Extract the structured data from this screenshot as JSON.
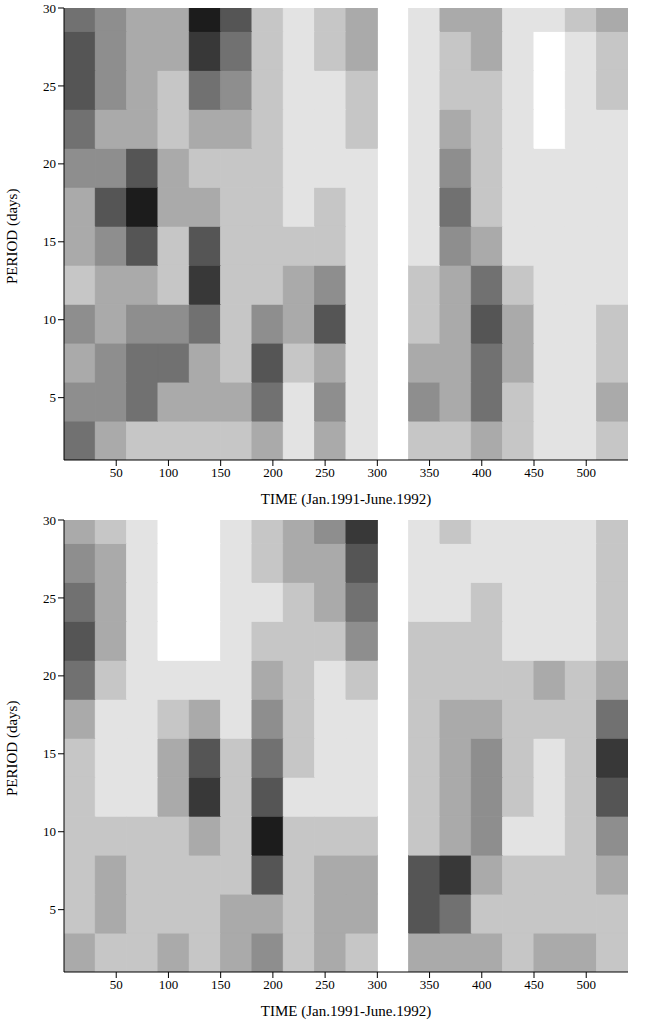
{
  "chart_data": [
    {
      "type": "heatmap",
      "x_label": "TIME (Jan.1991-June.1992)",
      "y_label": "PERIOD (days)",
      "xlim": [
        0,
        540
      ],
      "xticks": [
        50,
        100,
        150,
        200,
        250,
        300,
        350,
        400,
        450,
        500
      ],
      "ylim": [
        1,
        30
      ],
      "yticks": [
        5,
        10,
        15,
        20,
        25,
        30
      ],
      "x_edges": [
        0,
        30,
        60,
        90,
        120,
        150,
        180,
        210,
        240,
        270,
        300,
        330,
        360,
        390,
        420,
        450,
        480,
        510,
        540
      ],
      "y_edges": [
        1,
        3.5,
        6,
        8.5,
        11,
        13.5,
        16,
        18.5,
        21,
        23.5,
        26,
        28.5,
        30
      ],
      "zlim": [
        0,
        8
      ],
      "z": [
        [
          5,
          3,
          2,
          2,
          2,
          2,
          3,
          1,
          3,
          1,
          null,
          2,
          2,
          3,
          2,
          1,
          1,
          2
        ],
        [
          4,
          4,
          5,
          3,
          3,
          3,
          5,
          1,
          4,
          1,
          null,
          4,
          3,
          5,
          2,
          1,
          1,
          3
        ],
        [
          3,
          4,
          5,
          5,
          3,
          2,
          6,
          2,
          3,
          1,
          null,
          3,
          3,
          5,
          3,
          1,
          1,
          2
        ],
        [
          4,
          3,
          4,
          4,
          5,
          2,
          4,
          3,
          6,
          1,
          null,
          2,
          3,
          6,
          3,
          1,
          1,
          2
        ],
        [
          2,
          3,
          3,
          2,
          7,
          2,
          2,
          3,
          4,
          1,
          null,
          2,
          3,
          5,
          2,
          1,
          1,
          1
        ],
        [
          3,
          4,
          6,
          2,
          6,
          2,
          2,
          2,
          2,
          1,
          null,
          1,
          4,
          3,
          1,
          1,
          1,
          1
        ],
        [
          3,
          6,
          8,
          3,
          3,
          2,
          2,
          1,
          2,
          1,
          null,
          1,
          5,
          2,
          1,
          1,
          1,
          1
        ],
        [
          4,
          4,
          6,
          3,
          2,
          2,
          2,
          1,
          1,
          1,
          null,
          1,
          4,
          2,
          1,
          1,
          1,
          1
        ],
        [
          5,
          3,
          3,
          2,
          3,
          3,
          2,
          1,
          1,
          2,
          null,
          1,
          3,
          2,
          1,
          0,
          1,
          1
        ],
        [
          6,
          4,
          3,
          2,
          5,
          4,
          2,
          1,
          1,
          2,
          null,
          1,
          2,
          2,
          1,
          0,
          1,
          2
        ],
        [
          6,
          4,
          3,
          3,
          7,
          5,
          2,
          1,
          2,
          3,
          null,
          1,
          2,
          3,
          1,
          0,
          1,
          2
        ],
        [
          5,
          4,
          3,
          3,
          8,
          6,
          2,
          1,
          2,
          3,
          null,
          1,
          3,
          3,
          1,
          1,
          2,
          3
        ]
      ]
    },
    {
      "type": "heatmap",
      "x_label": "TIME (Jan.1991-June.1992)",
      "y_label": "PERIOD (days)",
      "xlim": [
        0,
        540
      ],
      "xticks": [
        50,
        100,
        150,
        200,
        250,
        300,
        350,
        400,
        450,
        500
      ],
      "ylim": [
        1,
        30
      ],
      "yticks": [
        5,
        10,
        15,
        20,
        25,
        30
      ],
      "x_edges": [
        0,
        30,
        60,
        90,
        120,
        150,
        180,
        210,
        240,
        270,
        300,
        330,
        360,
        390,
        420,
        450,
        480,
        510,
        540
      ],
      "y_edges": [
        1,
        3.5,
        6,
        8.5,
        11,
        13.5,
        16,
        18.5,
        21,
        23.5,
        26,
        28.5,
        30
      ],
      "zlim": [
        0,
        8
      ],
      "z": [
        [
          3,
          2,
          2,
          3,
          2,
          3,
          4,
          2,
          3,
          2,
          null,
          3,
          3,
          3,
          2,
          3,
          3,
          2
        ],
        [
          2,
          3,
          2,
          2,
          2,
          3,
          3,
          2,
          3,
          3,
          null,
          6,
          5,
          2,
          2,
          2,
          2,
          2
        ],
        [
          2,
          3,
          2,
          2,
          2,
          2,
          6,
          2,
          3,
          3,
          null,
          6,
          7,
          3,
          2,
          2,
          2,
          3
        ],
        [
          2,
          2,
          2,
          2,
          3,
          2,
          8,
          2,
          2,
          2,
          null,
          2,
          3,
          4,
          1,
          1,
          2,
          4
        ],
        [
          2,
          1,
          1,
          3,
          7,
          2,
          6,
          1,
          1,
          1,
          null,
          2,
          3,
          4,
          2,
          1,
          2,
          6
        ],
        [
          2,
          1,
          1,
          3,
          6,
          2,
          5,
          2,
          1,
          1,
          null,
          2,
          3,
          4,
          2,
          1,
          2,
          7
        ],
        [
          3,
          1,
          1,
          2,
          3,
          1,
          4,
          2,
          1,
          1,
          null,
          2,
          3,
          3,
          2,
          2,
          2,
          5
        ],
        [
          5,
          2,
          1,
          1,
          1,
          1,
          3,
          2,
          1,
          2,
          null,
          2,
          2,
          2,
          2,
          3,
          2,
          3
        ],
        [
          6,
          3,
          1,
          0,
          0,
          1,
          2,
          2,
          2,
          4,
          null,
          2,
          2,
          2,
          1,
          1,
          1,
          2
        ],
        [
          5,
          3,
          1,
          0,
          0,
          1,
          1,
          2,
          3,
          5,
          null,
          1,
          1,
          2,
          1,
          1,
          1,
          2
        ],
        [
          4,
          3,
          1,
          0,
          0,
          1,
          2,
          3,
          3,
          6,
          null,
          1,
          1,
          1,
          1,
          1,
          1,
          2
        ],
        [
          3,
          2,
          1,
          0,
          0,
          1,
          2,
          3,
          4,
          7,
          null,
          1,
          2,
          1,
          1,
          1,
          1,
          2
        ]
      ]
    }
  ]
}
